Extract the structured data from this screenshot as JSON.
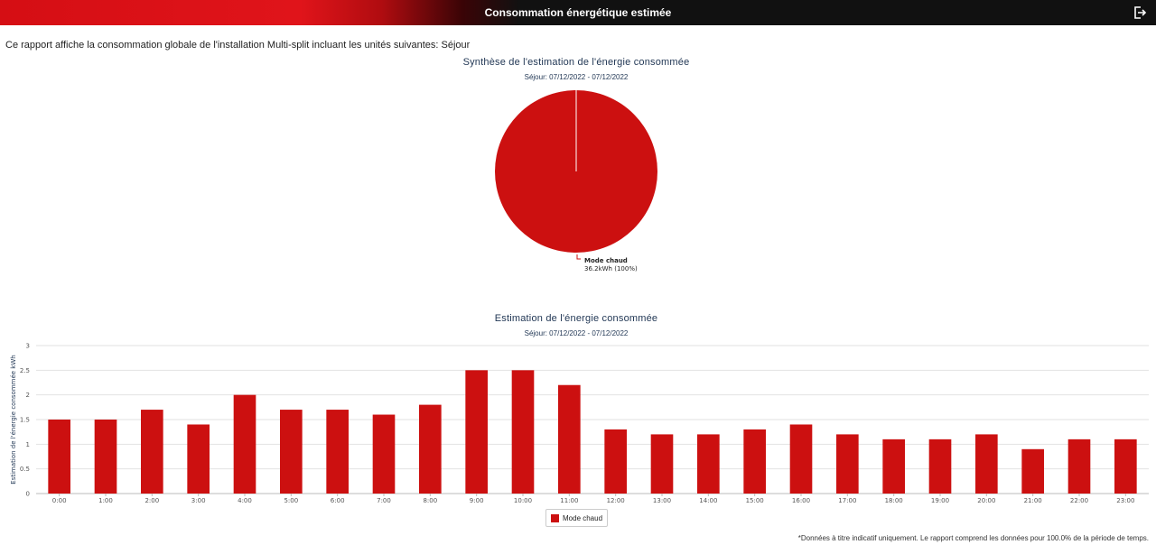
{
  "header": {
    "title": "Consommation énergétique estimée",
    "exit_icon": "exit-icon"
  },
  "intro_text": "Ce rapport affiche la consommation globale de l'installation Multi-split incluant les unités suivantes: Séjour",
  "pie_chart": {
    "title": "Synthèse de l'estimation de l'énergie consommée",
    "subtitle": "Séjour: 07/12/2022 - 07/12/2022",
    "label_name": "Mode chaud",
    "label_value": "36.2kWh (100%)"
  },
  "bar_chart": {
    "title": "Estimation de l'énergie consommée",
    "subtitle": "Séjour: 07/12/2022 - 07/12/2022",
    "ylabel": "Estimation de l'énergie consommée kWh",
    "legend_label": "Mode chaud"
  },
  "footnote": "*Données à titre indicatif uniquement. Le rapport comprend les données pour 100.0% de la période de temps.",
  "colors": {
    "accent": "#cc1010",
    "title_text": "#1f3553"
  },
  "chart_data": [
    {
      "type": "pie",
      "title": "Synthèse de l'estimation de l'énergie consommée",
      "subtitle": "Séjour: 07/12/2022 - 07/12/2022",
      "slices": [
        {
          "name": "Mode chaud",
          "value": 36.2,
          "percent": 100
        }
      ],
      "unit": "kWh"
    },
    {
      "type": "bar",
      "title": "Estimation de l'énergie consommée",
      "subtitle": "Séjour: 07/12/2022 - 07/12/2022",
      "xlabel": "",
      "ylabel": "Estimation de l'énergie consommée kWh",
      "categories": [
        "0:00",
        "1:00",
        "2:00",
        "3:00",
        "4:00",
        "5:00",
        "6:00",
        "7:00",
        "8:00",
        "9:00",
        "10:00",
        "11:00",
        "12:00",
        "13:00",
        "14:00",
        "15:00",
        "16:00",
        "17:00",
        "18:00",
        "19:00",
        "20:00",
        "21:00",
        "22:00",
        "23:00"
      ],
      "series": [
        {
          "name": "Mode chaud",
          "values": [
            1.5,
            1.5,
            1.7,
            1.4,
            2.0,
            1.7,
            1.7,
            1.6,
            1.8,
            2.5,
            2.5,
            2.2,
            1.3,
            1.2,
            1.2,
            1.3,
            1.4,
            1.2,
            1.1,
            1.1,
            1.2,
            0.9,
            1.1,
            1.1
          ]
        }
      ],
      "ylim": [
        0,
        3
      ],
      "yticks": [
        "0",
        "0.5",
        "1",
        "1.5",
        "2",
        "2.5",
        "3"
      ],
      "grid": true,
      "legend": "bottom-center"
    }
  ]
}
